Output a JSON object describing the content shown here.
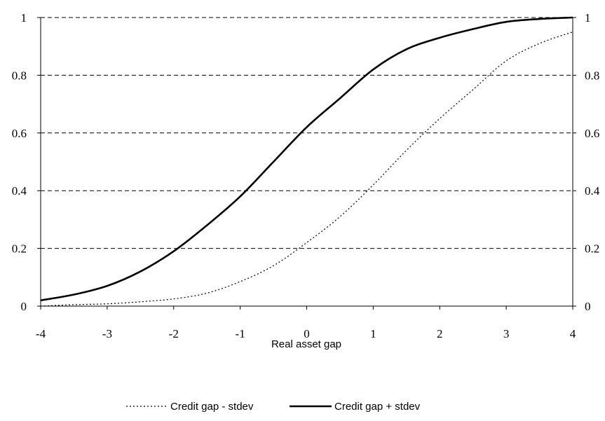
{
  "chart_data": {
    "type": "line",
    "title": "",
    "xlabel": "Real asset gap",
    "ylabel": "",
    "xlim": [
      -4,
      4
    ],
    "ylim": [
      0,
      1
    ],
    "x_ticks": [
      "-4",
      "-3",
      "-2",
      "-1",
      "0",
      "1",
      "2",
      "3",
      "4"
    ],
    "y_ticks": [
      "0",
      "0.2",
      "0.4",
      "0.6",
      "0.8",
      "1"
    ],
    "y_ticks_right": [
      "0",
      "0.2",
      "0.4",
      "0.6",
      "0.8",
      "1"
    ],
    "grid": "horizontal dashed",
    "legend_position": "bottom",
    "x": [
      -4,
      -3.5,
      -3,
      -2.5,
      -2,
      -1.5,
      -1,
      -0.5,
      0,
      0.5,
      1,
      1.5,
      2,
      2.5,
      3,
      3.5,
      4
    ],
    "series": [
      {
        "name": "Credit gap - stdev",
        "style": "dotted",
        "color": "#000000",
        "values": [
          0.0,
          0.005,
          0.008,
          0.015,
          0.025,
          0.045,
          0.085,
          0.14,
          0.22,
          0.31,
          0.42,
          0.54,
          0.65,
          0.75,
          0.85,
          0.91,
          0.95
        ]
      },
      {
        "name": "Credit gap + stdev",
        "style": "solid",
        "color": "#000000",
        "values": [
          0.02,
          0.04,
          0.07,
          0.12,
          0.19,
          0.28,
          0.38,
          0.5,
          0.62,
          0.72,
          0.82,
          0.89,
          0.93,
          0.96,
          0.985,
          0.995,
          1.0
        ]
      }
    ]
  }
}
